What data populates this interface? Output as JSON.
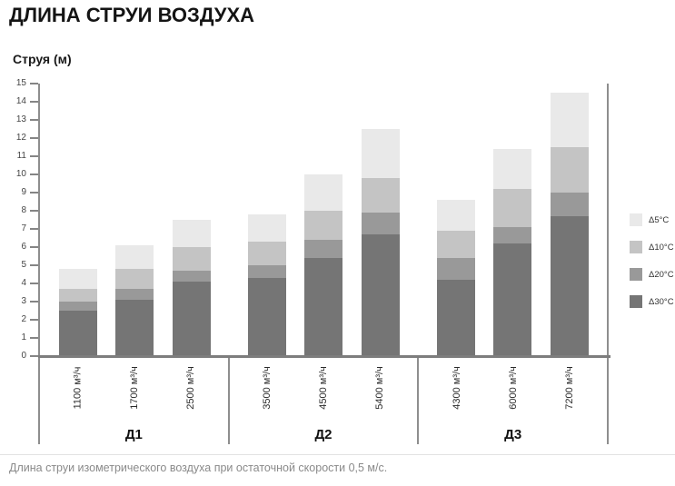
{
  "title": "ДЛИНА СТРУИ ВОЗДУХА",
  "caption": "Длина струи изометрического воздуха при остаточной скорости 0,5 м/с.",
  "chart_data": {
    "type": "bar",
    "variant": "overlapped-stack",
    "title": "ДЛИНА СТРУИ ВОЗДУХА",
    "ylabel": "Струя (м)",
    "xlabel": "",
    "ylim": [
      0,
      15
    ],
    "yticks": [
      0,
      1,
      2,
      3,
      4,
      5,
      6,
      7,
      8,
      9,
      10,
      11,
      12,
      13,
      14,
      15
    ],
    "grid": false,
    "legend_position": "right",
    "groups": [
      {
        "label": "Д1",
        "categories": [
          "1100 м³/ч",
          "1700 м³/ч",
          "2500 м³/ч"
        ]
      },
      {
        "label": "Д2",
        "categories": [
          "3500 м³/ч",
          "4500 м³/ч",
          "5400 м³/ч"
        ]
      },
      {
        "label": "Д3",
        "categories": [
          "4300 м³/ч",
          "6000 м³/ч",
          "7200 м³/ч"
        ]
      }
    ],
    "categories": [
      "1100 м³/ч",
      "1700 м³/ч",
      "2500 м³/ч",
      "3500 м³/ч",
      "4500 м³/ч",
      "5400 м³/ч",
      "4300 м³/ч",
      "6000 м³/ч",
      "7200 м³/ч"
    ],
    "series": [
      {
        "name": "Δ5°C",
        "color": "#e9e9e9",
        "values": [
          4.8,
          6.1,
          7.5,
          7.8,
          10.0,
          12.5,
          8.6,
          11.4,
          14.5
        ]
      },
      {
        "name": "Δ10°C",
        "color": "#c4c4c4",
        "values": [
          3.7,
          4.8,
          6.0,
          6.3,
          8.0,
          9.8,
          6.9,
          9.2,
          11.5
        ]
      },
      {
        "name": "Δ20°C",
        "color": "#999999",
        "values": [
          3.0,
          3.7,
          4.7,
          5.0,
          6.4,
          7.9,
          5.4,
          7.1,
          9.0
        ]
      },
      {
        "name": "Δ30°C",
        "color": "#757575",
        "values": [
          2.5,
          3.1,
          4.1,
          4.3,
          5.4,
          6.7,
          4.2,
          6.2,
          7.7
        ]
      }
    ],
    "values_unit": "м"
  },
  "colors": {
    "axis": "#8e8e8e",
    "axis_bottom": "#7d7d7d",
    "tick_text": "#454545",
    "caption_text": "#8a8a8a"
  }
}
